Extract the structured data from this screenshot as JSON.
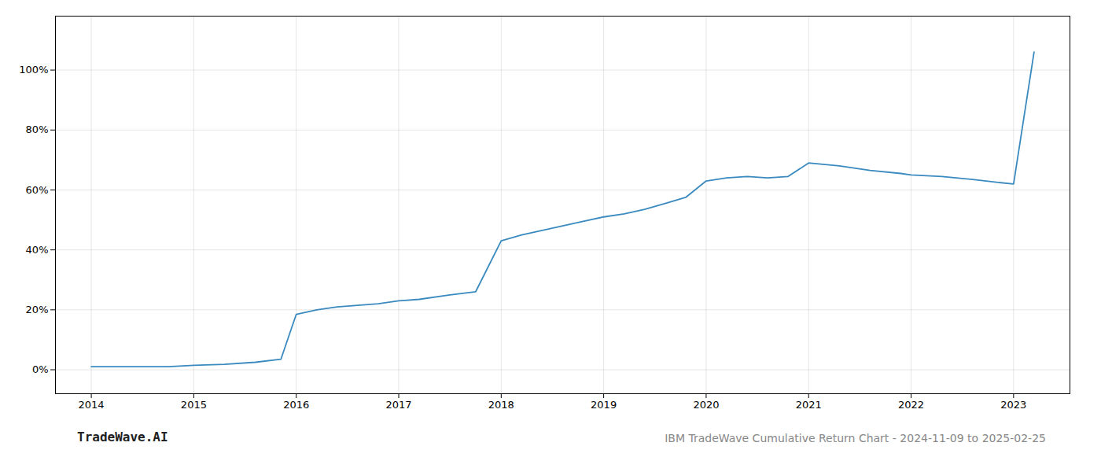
{
  "chart_data": {
    "type": "line",
    "title": "IBM TradeWave Cumulative Return Chart - 2024-11-09 to 2025-02-25",
    "annotations": [
      "TradeWave.AI"
    ],
    "x": [
      2014.0,
      2014.2,
      2014.5,
      2014.75,
      2015.0,
      2015.3,
      2015.6,
      2015.85,
      2016.0,
      2016.2,
      2016.4,
      2016.6,
      2016.8,
      2017.0,
      2017.2,
      2017.5,
      2017.75,
      2018.0,
      2018.2,
      2018.4,
      2018.6,
      2018.8,
      2019.0,
      2019.2,
      2019.4,
      2019.6,
      2019.8,
      2020.0,
      2020.2,
      2020.4,
      2020.6,
      2020.8,
      2021.0,
      2021.3,
      2021.6,
      2021.9,
      2022.0,
      2022.3,
      2022.6,
      2022.85,
      2023.0,
      2023.2
    ],
    "values": [
      1.0,
      1.0,
      1.0,
      1.0,
      1.5,
      1.8,
      2.5,
      3.5,
      18.5,
      20.0,
      21.0,
      21.5,
      22.0,
      23.0,
      23.5,
      25.0,
      26.0,
      43.0,
      45.0,
      46.5,
      48.0,
      49.5,
      51.0,
      52.0,
      53.5,
      55.5,
      57.5,
      63.0,
      64.0,
      64.5,
      64.0,
      64.5,
      69.0,
      68.0,
      66.5,
      65.5,
      65.0,
      64.5,
      63.5,
      62.5,
      62.0,
      106.0
    ],
    "color": "#3a8abf",
    "xlim": [
      2013.65,
      2023.55
    ],
    "ylim": [
      -8,
      118
    ],
    "xticks": [
      2014,
      2015,
      2016,
      2017,
      2018,
      2019,
      2020,
      2021,
      2022,
      2023
    ],
    "yticks": [
      {
        "value": 0,
        "label": "0%"
      },
      {
        "value": 20,
        "label": "20%"
      },
      {
        "value": 40,
        "label": "40%"
      },
      {
        "value": 60,
        "label": "60%"
      },
      {
        "value": 80,
        "label": "80%"
      },
      {
        "value": 100,
        "label": "100%"
      }
    ],
    "grid": true
  }
}
